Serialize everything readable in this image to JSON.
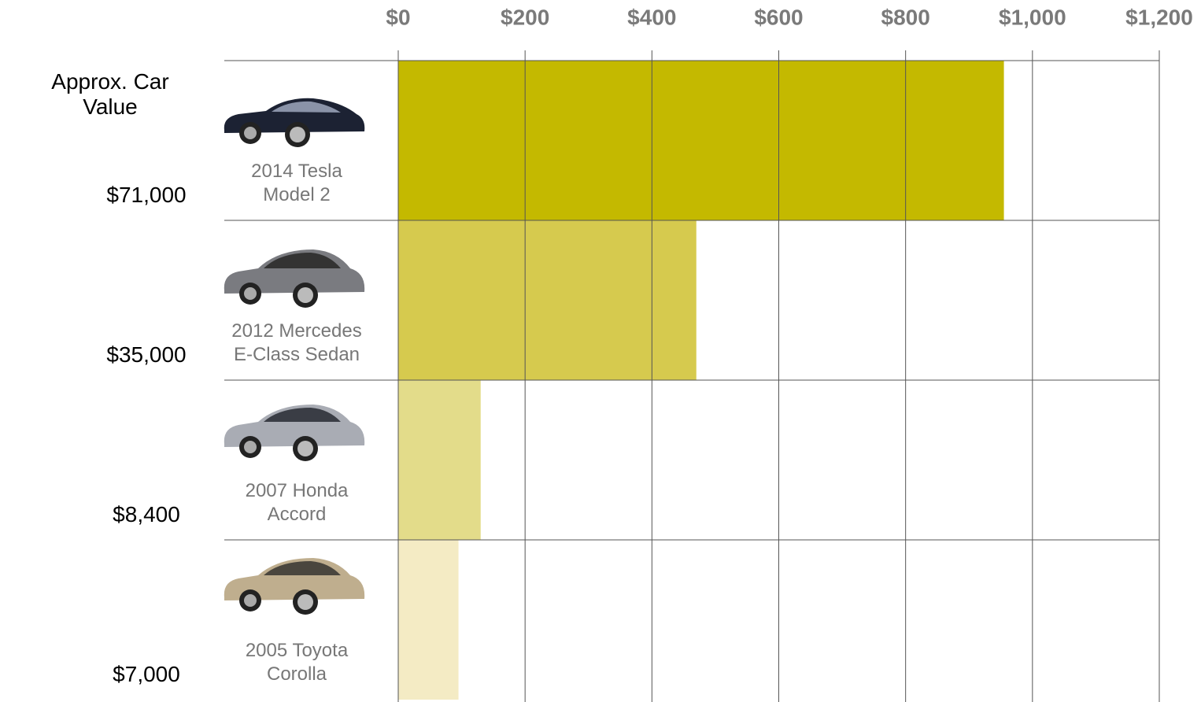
{
  "chart_data": {
    "type": "hbar",
    "categories": [
      "2014 Tesla\nModel 2",
      "2012 Mercedes\nE-Class Sedan",
      "2007 Honda\nAccord",
      "2005 Toyota\nCorolla"
    ],
    "values": [
      955,
      470,
      130,
      95
    ],
    "colors": [
      "#c4b900",
      "#d6ca4e",
      "#e3dc8a",
      "#f4ebc4"
    ],
    "xlim": [
      0,
      1200
    ],
    "xticks": [
      {
        "value": 0,
        "label": "$0"
      },
      {
        "value": 200,
        "label": "$200"
      },
      {
        "value": 400,
        "label": "$400"
      },
      {
        "value": 600,
        "label": "$600"
      },
      {
        "value": 800,
        "label": "$800"
      },
      {
        "value": 1000,
        "label": "$1,000"
      },
      {
        "value": 1200,
        "label": "$1,200"
      }
    ],
    "grid": true,
    "car_value_title": "Approx. Car Value",
    "car_values": [
      "$71,000",
      "$35,000",
      "$8,400",
      "$7,000"
    ]
  }
}
